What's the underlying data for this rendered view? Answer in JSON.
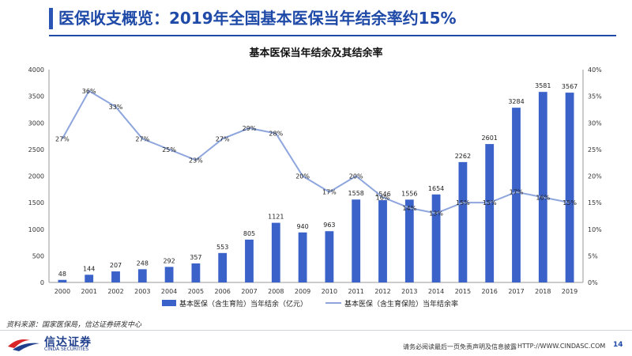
{
  "slide": {
    "title": "医保收支概览：2019年全国基本医保当年结余率约15%",
    "source": "资料来源：国家医保局，信达证券研发中心",
    "logo_cn": "信达证券",
    "logo_en": "CINDA SECURITIES",
    "disclaimer": "请务必阅读最后一页免责声明及信息披露",
    "url": "HTTP://WWW.CINDASC.COM",
    "page_number": "14"
  },
  "colors": {
    "bar": "#3b62c9",
    "line": "#8ea6dd",
    "accent": "#1f4aa8"
  },
  "chart_data": {
    "type": "bar",
    "title": "基本医保当年结余及其结余率",
    "categories": [
      "2000",
      "2001",
      "2002",
      "2003",
      "2004",
      "2005",
      "2006",
      "2007",
      "2008",
      "2009",
      "2010",
      "2011",
      "2012",
      "2013",
      "2014",
      "2015",
      "2016",
      "2017",
      "2018",
      "2019"
    ],
    "series": [
      {
        "name": "基本医保（含生育险）当年结余（亿元）",
        "type": "bar",
        "axis": "left",
        "values": [
          48,
          144,
          207,
          248,
          292,
          357,
          553,
          805,
          1121,
          940,
          963,
          1558,
          1546,
          1556,
          1654,
          2262,
          2601,
          3284,
          3581,
          3567
        ]
      },
      {
        "name": "基本医保（含生育保险）当年结余率",
        "type": "line",
        "axis": "right",
        "values": [
          27,
          36,
          33,
          27,
          25,
          23,
          27,
          29,
          28,
          20,
          17,
          20,
          16,
          14,
          13,
          15,
          15,
          17,
          16,
          15
        ],
        "labels": [
          "27%",
          "36%",
          "33%",
          "27%",
          "25%",
          "23%",
          "27%",
          "29%",
          "28%",
          "20%",
          "17%",
          "20%",
          "16%",
          "14%",
          "13%",
          "15%",
          "15%",
          "17%",
          "16%",
          "15%"
        ]
      }
    ],
    "y_left": {
      "ylim": [
        0,
        4000
      ],
      "ticks": [
        "0",
        "500",
        "1000",
        "1500",
        "2000",
        "2500",
        "3000",
        "3500",
        "4000"
      ]
    },
    "y_right": {
      "ylim": [
        0,
        40
      ],
      "ticks": [
        "0%",
        "5%",
        "10%",
        "15%",
        "20%",
        "25%",
        "30%",
        "35%",
        "40%"
      ]
    },
    "grid": false,
    "legend_position": "bottom"
  }
}
